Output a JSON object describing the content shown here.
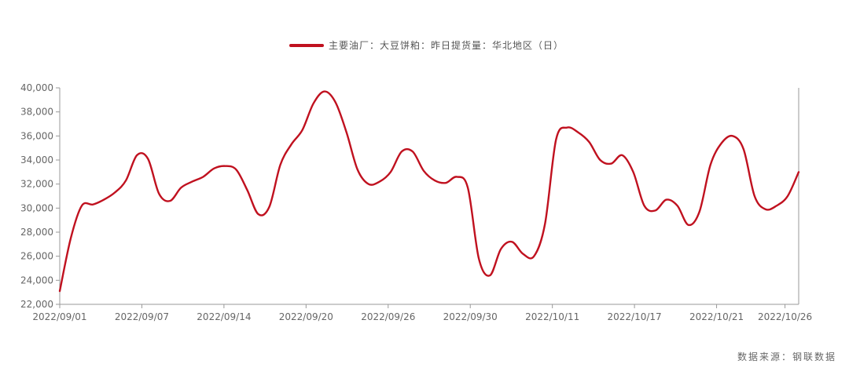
{
  "chart_data": {
    "type": "line",
    "series": [
      {
        "name": "主要油厂：大豆饼粕：昨日提货量：华北地区（日）",
        "color": "#c0111f",
        "values": [
          23100,
          27500,
          30200,
          30300,
          30700,
          31300,
          32300,
          34400,
          34100,
          31200,
          30600,
          31700,
          32200,
          32600,
          33300,
          33500,
          33200,
          31500,
          29500,
          30100,
          33600,
          35300,
          36500,
          38700,
          39700,
          38800,
          36300,
          33200,
          32000,
          32200,
          33000,
          34700,
          34700,
          33100,
          32300,
          32100,
          32600,
          31700,
          25800,
          24400,
          26600,
          27200,
          26200,
          26000,
          28700,
          35700,
          36700,
          36300,
          35500,
          34000,
          33700,
          34400,
          33000,
          30200,
          29800,
          30700,
          30200,
          28600,
          29700,
          33600,
          35400,
          36000,
          34900,
          31000,
          29900,
          30200,
          31000,
          33000
        ]
      }
    ],
    "x_tick_labels": [
      "2022/09/01",
      "2022/09/07",
      "2022/09/14",
      "2022/09/20",
      "2022/09/26",
      "2022/09/30",
      "2022/10/11",
      "2022/10/17",
      "2022/10/21",
      "2022/10/26"
    ],
    "x_tick_index": [
      0,
      6,
      12,
      18,
      24,
      30,
      36,
      42,
      48,
      53
    ],
    "y_ticks": [
      22000,
      24000,
      26000,
      28000,
      30000,
      32000,
      34000,
      36000,
      38000,
      40000
    ],
    "y_tick_labels": [
      "22,000",
      "24,000",
      "26,000",
      "28,000",
      "30,000",
      "32,000",
      "34,000",
      "36,000",
      "38,000",
      "40,000"
    ],
    "ylim": [
      22000,
      40000
    ],
    "x_index_range": [
      0,
      54
    ],
    "grid": false,
    "legend_position": "top-center",
    "title": "",
    "xlabel": "",
    "ylabel": ""
  },
  "source": "数据来源：钢联数据"
}
